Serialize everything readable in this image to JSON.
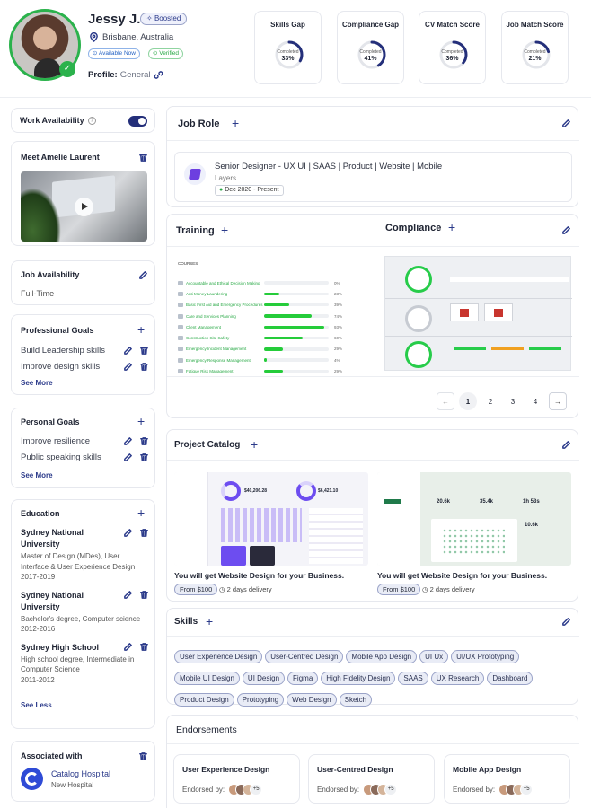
{
  "profile": {
    "name": "Jessy J.",
    "badge": "Boosted",
    "location": "Brisbane, Australia",
    "status_available": "Available Now",
    "status_verified": "Verified",
    "profile_label": "Profile:",
    "profile_value": "General"
  },
  "metrics": [
    {
      "title": "Skills Gap",
      "caption": "Completed",
      "value": "33%",
      "fraction": 0.33
    },
    {
      "title": "Compliance Gap",
      "caption": "Completed",
      "value": "41%",
      "fraction": 0.41
    },
    {
      "title": "CV Match Score",
      "caption": "Completed",
      "value": "36%",
      "fraction": 0.36
    },
    {
      "title": "Job Match Score",
      "caption": "Completed",
      "value": "21%",
      "fraction": 0.21
    }
  ],
  "sidebar": {
    "work_availability": "Work Availability",
    "video_title": "Meet Amelie Laurent",
    "job_availability_title": "Job Availability",
    "job_availability_value": "Full-Time",
    "professional_goals_title": "Professional Goals",
    "professional_goals": [
      "Build Leadership skills",
      "Improve design skills"
    ],
    "personal_goals_title": "Personal Goals",
    "personal_goals": [
      "Improve resilience",
      "Public speaking skills"
    ],
    "see_more": "See More",
    "see_less": "See Less",
    "education_title": "Education",
    "education": [
      {
        "school": "Sydney National University",
        "degree": "Master of Design (MDes), User Interface & User Experience Design",
        "years": "2017-2019"
      },
      {
        "school": "Sydney National University",
        "degree": "Bachelor's degree, Computer science",
        "years": "2012-2016"
      },
      {
        "school": "Sydney High School",
        "degree": "High school degree, Intermediate in Computer Science",
        "years": "2011-2012"
      }
    ],
    "associated_title": "Associated with",
    "associated_name": "Catalog Hospital",
    "associated_sub": "New Hospital"
  },
  "job_role": {
    "title": "Job Role",
    "position": "Senior Designer - UX UI | SAAS | Product | Website | Mobile",
    "company": "Layers",
    "period": "Dec 2020 - Present"
  },
  "training": {
    "title": "Training",
    "compliance_title": "Compliance",
    "courses_label": "COURSES",
    "courses": [
      {
        "name": "Accountable and Ethical Decision Making",
        "pct": "0%",
        "value": 0
      },
      {
        "name": "Anti Money Laundering",
        "pct": "23%",
        "value": 23
      },
      {
        "name": "Basic First Aid and Emergency Procedures",
        "pct": "39%",
        "value": 39
      },
      {
        "name": "Care and Services Planning",
        "pct": "74%",
        "value": 74
      },
      {
        "name": "Client Management",
        "pct": "93%",
        "value": 93
      },
      {
        "name": "Construction Site Safety",
        "pct": "60%",
        "value": 60
      },
      {
        "name": "Emergency Incident Management",
        "pct": "29%",
        "value": 29
      },
      {
        "name": "Emergency Response Management",
        "pct": "4%",
        "value": 4
      },
      {
        "name": "Fatigue Risk Management",
        "pct": "29%",
        "value": 29
      }
    ],
    "pages": [
      "1",
      "2",
      "3",
      "4"
    ]
  },
  "project_catalog": {
    "title": "Project Catalog",
    "items": [
      {
        "desc": "You will get Website Design for your Business.",
        "price": "From $100",
        "delivery": "2 days delivery",
        "stat1": "$40,206.28",
        "stat2": "$6,421.10"
      },
      {
        "desc": "You will get Website Design for your Business.",
        "price": "From $100",
        "delivery": "2 days delivery",
        "stat1": "20.6k",
        "stat2": "35.4k",
        "stat3": "1h 53s",
        "stat4": "10.6k"
      }
    ]
  },
  "skills": {
    "title": "Skills",
    "items": [
      "User Experience Design",
      "User-Centred Design",
      "Mobile App Design",
      "UI Ux",
      "UI/UX Prototyping",
      "Mobile UI Design",
      "UI Design",
      "Figma",
      "High Fidelity Design",
      "SAAS",
      "UX Research",
      "Dashboard",
      "Product Design",
      "Prototyping",
      "Web Design",
      "Sketch"
    ]
  },
  "endorsements": {
    "title": "Endorsements",
    "endorsed_by": "Endorsed by:",
    "items": [
      {
        "skill": "User Experience Design",
        "more": "+5"
      },
      {
        "skill": "User-Centred Design",
        "more": "+5"
      },
      {
        "skill": "Mobile App Design",
        "more": "+5"
      }
    ]
  },
  "colors": {
    "accent": "#2b3a8a",
    "green": "#27a844",
    "progress_ring": "#242f7a"
  }
}
